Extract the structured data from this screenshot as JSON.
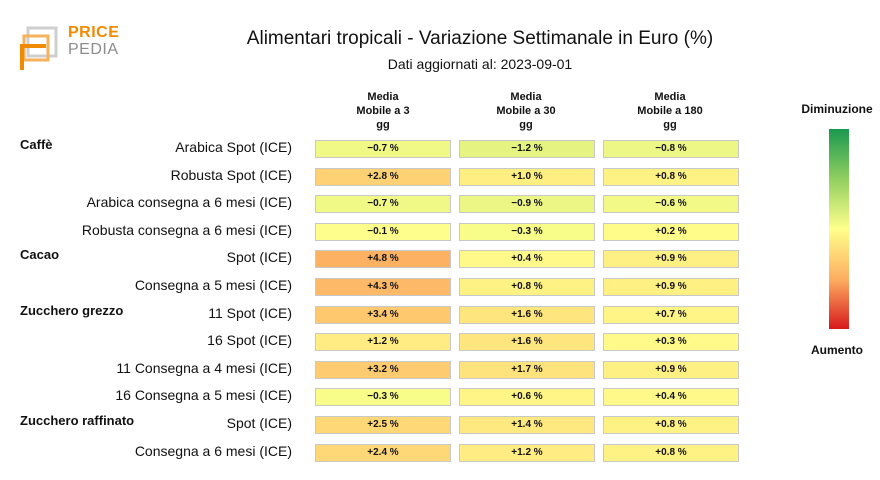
{
  "logo": {
    "line1": "PRICE",
    "line2": "PEDIA"
  },
  "chart_data": {
    "type": "table",
    "title": "Alimentari tropicali - Variazione Settimanale in Euro (%)",
    "subtitle": "Dati aggiornati al: 2023-09-01",
    "columns": [
      {
        "line1": "Media",
        "line2": "Mobile a 3",
        "line3": "gg"
      },
      {
        "line1": "Media",
        "line2": "Mobile a 30",
        "line3": "gg"
      },
      {
        "line1": "Media",
        "line2": "Mobile a 180",
        "line3": "gg"
      }
    ],
    "rows": [
      {
        "group": "Caffè",
        "label": "Arabica Spot (ICE)",
        "values": [
          -0.7,
          -1.2,
          -0.8
        ],
        "text": [
          "−0.7 %",
          "−1.2 %",
          "−0.8 %"
        ]
      },
      {
        "group": "",
        "label": "Robusta Spot (ICE)",
        "values": [
          2.8,
          1.0,
          0.8
        ],
        "text": [
          "+2.8 %",
          "+1.0 %",
          "+0.8 %"
        ]
      },
      {
        "group": "",
        "label": "Arabica consegna a 6 mesi (ICE)",
        "values": [
          -0.7,
          -0.9,
          -0.6
        ],
        "text": [
          "−0.7 %",
          "−0.9 %",
          "−0.6 %"
        ]
      },
      {
        "group": "",
        "label": "Robusta consegna a 6 mesi (ICE)",
        "values": [
          -0.1,
          -0.3,
          0.2
        ],
        "text": [
          "−0.1 %",
          "−0.3 %",
          "+0.2 %"
        ]
      },
      {
        "group": "Cacao",
        "label": "Spot (ICE)",
        "values": [
          4.8,
          0.4,
          0.9
        ],
        "text": [
          "+4.8 %",
          "+0.4 %",
          "+0.9 %"
        ]
      },
      {
        "group": "",
        "label": "Consegna a 5 mesi (ICE)",
        "values": [
          4.3,
          0.8,
          0.9
        ],
        "text": [
          "+4.3 %",
          "+0.8 %",
          "+0.9 %"
        ]
      },
      {
        "group": "Zucchero grezzo",
        "label": "11 Spot (ICE)",
        "values": [
          3.4,
          1.6,
          0.7
        ],
        "text": [
          "+3.4 %",
          "+1.6 %",
          "+0.7 %"
        ]
      },
      {
        "group": "",
        "label": "16 Spot (ICE)",
        "values": [
          1.2,
          1.6,
          0.3
        ],
        "text": [
          "+1.2 %",
          "+1.6 %",
          "+0.3 %"
        ]
      },
      {
        "group": "",
        "label": "11 Consegna a 4 mesi (ICE)",
        "values": [
          3.2,
          1.7,
          0.9
        ],
        "text": [
          "+3.2 %",
          "+1.7 %",
          "+0.9 %"
        ]
      },
      {
        "group": "",
        "label": "16 Consegna a 5 mesi (ICE)",
        "values": [
          -0.3,
          0.6,
          0.4
        ],
        "text": [
          "−0.3 %",
          "+0.6 %",
          "+0.4 %"
        ]
      },
      {
        "group": "Zucchero raffinato",
        "label": "Spot (ICE)",
        "values": [
          2.5,
          1.4,
          0.8
        ],
        "text": [
          "+2.5 %",
          "+1.4 %",
          "+0.8 %"
        ]
      },
      {
        "group": "",
        "label": "Consegna a 6 mesi (ICE)",
        "values": [
          2.4,
          1.2,
          0.8
        ],
        "text": [
          "+2.4 %",
          "+1.2 %",
          "+0.8 %"
        ]
      }
    ],
    "legend": {
      "top": "Diminuzione",
      "bottom": "Aumento"
    }
  },
  "colors": {
    "decrease": "#1a9850",
    "neutral": "#ffff8c",
    "increase": "#d7191c",
    "logo_orange": "#f08a00"
  }
}
